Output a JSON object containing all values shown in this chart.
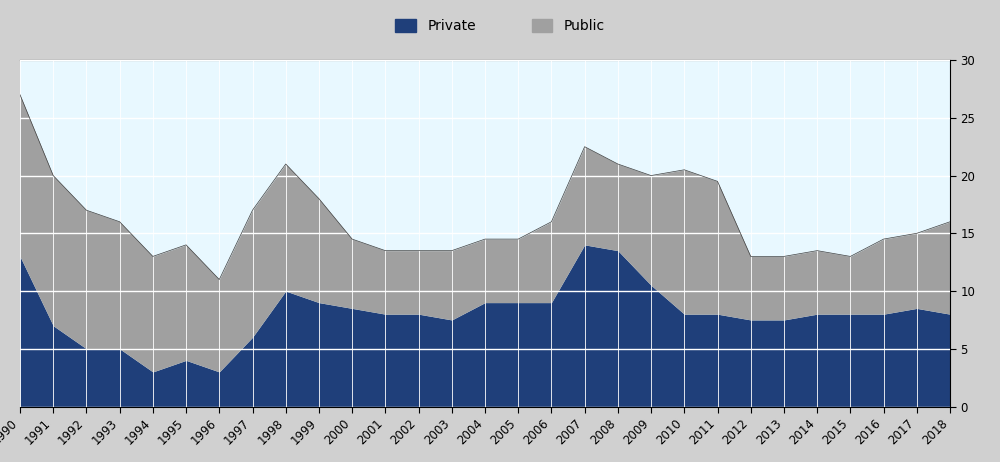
{
  "years": [
    1990,
    1991,
    1992,
    1993,
    1994,
    1995,
    1996,
    1997,
    1998,
    1999,
    2000,
    2001,
    2002,
    2003,
    2004,
    2005,
    2006,
    2007,
    2008,
    2009,
    2010,
    2011,
    2012,
    2013,
    2014,
    2015,
    2016,
    2017,
    2018
  ],
  "private": [
    13.0,
    7.0,
    5.0,
    5.0,
    3.0,
    4.0,
    3.0,
    6.0,
    10.0,
    9.0,
    8.5,
    8.0,
    8.0,
    7.5,
    9.0,
    9.0,
    9.0,
    14.0,
    13.5,
    10.5,
    8.0,
    8.0,
    7.5,
    7.5,
    8.0,
    8.0,
    8.0,
    8.5,
    8.0
  ],
  "public_above": [
    14.0,
    13.0,
    12.0,
    11.0,
    10.0,
    10.0,
    8.0,
    11.0,
    11.0,
    9.0,
    6.0,
    5.5,
    5.5,
    6.0,
    5.5,
    5.5,
    7.0,
    8.5,
    7.5,
    9.5,
    12.5,
    11.5,
    5.5,
    5.5,
    5.5,
    5.0,
    6.5,
    6.5,
    8.0
  ],
  "private_color": "#1F3F7A",
  "public_color": "#A0A0A0",
  "background_color": "#E8F8FF",
  "legend_bg_color": "#D0D0D0",
  "ylim": [
    0,
    30
  ],
  "yticks": [
    0,
    5,
    10,
    15,
    20,
    25,
    30
  ],
  "private_label": "Private",
  "public_label": "Public",
  "grid_color": "#FFFFFF",
  "tick_label_size": 8.5,
  "legend_fontsize": 10
}
